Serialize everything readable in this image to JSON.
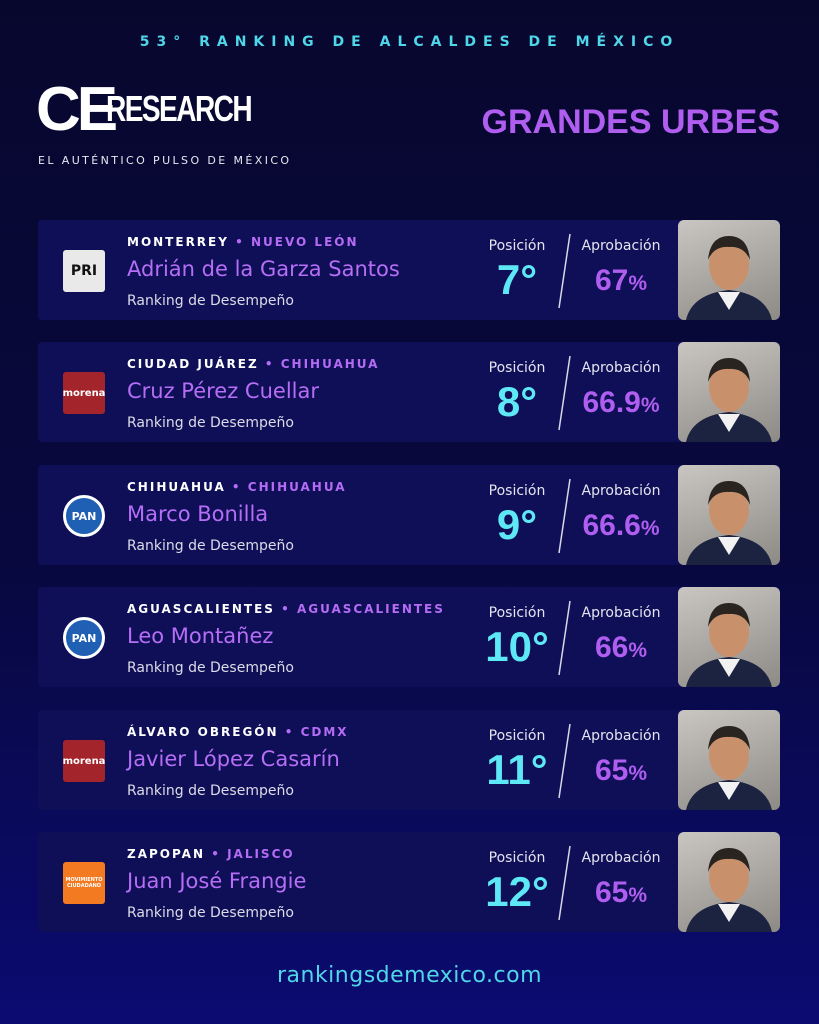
{
  "header": {
    "kicker": "53° RANKING DE ALCALDES DE MÉXICO",
    "logo_main": "CE",
    "logo_rest": "RESEARCH",
    "tagline": "EL AUTÉNTICO PULSO DE MÉXICO",
    "section_title": "GRANDES URBES"
  },
  "cards": [
    {
      "city": "MONTERREY",
      "state": "NUEVO LEÓN",
      "name": "Adrián de la Garza Santos",
      "subtitle": "Ranking de Desempeño",
      "position_label": "Posición",
      "position": "7°",
      "approval_label": "Aprobación",
      "approval": "67",
      "approval_unit": "%",
      "party": {
        "label": "PRI",
        "color": "#e9e9e9"
      }
    },
    {
      "city": "CIUDAD JUÁREZ",
      "state": "CHIHUAHUA",
      "name": "Cruz Pérez Cuellar",
      "subtitle": "Ranking de Desempeño",
      "position_label": "Posición",
      "position": "8°",
      "approval_label": "Aprobación",
      "approval": "66.9",
      "approval_unit": "%",
      "party": {
        "label": "morena",
        "color": "#a3242a"
      }
    },
    {
      "city": "CHIHUAHUA",
      "state": "CHIHUAHUA",
      "name": "Marco Bonilla",
      "subtitle": "Ranking de Desempeño",
      "position_label": "Posición",
      "position": "9°",
      "approval_label": "Aprobación",
      "approval": "66.6",
      "approval_unit": "%",
      "party": {
        "label": "PAN",
        "color": "#1f5fb4"
      }
    },
    {
      "city": "AGUASCALIENTES",
      "state": "AGUASCALIENTES",
      "name": "Leo Montañez",
      "subtitle": "Ranking de Desempeño",
      "position_label": "Posición",
      "position": "10°",
      "approval_label": "Aprobación",
      "approval": "66",
      "approval_unit": "%",
      "party": {
        "label": "PAN",
        "color": "#1f5fb4"
      }
    },
    {
      "city": "ÁLVARO OBREGÓN",
      "state": "CDMX",
      "name": "Javier López Casarín",
      "subtitle": "Ranking de Desempeño",
      "position_label": "Posición",
      "position": "11°",
      "approval_label": "Aprobación",
      "approval": "65",
      "approval_unit": "%",
      "party": {
        "label": "morena",
        "color": "#a3242a"
      }
    },
    {
      "city": "ZAPOPAN",
      "state": "JALISCO",
      "name": "Juan José Frangie",
      "subtitle": "Ranking de Desempeño",
      "position_label": "Posición",
      "position": "12°",
      "approval_label": "Aprobación",
      "approval": "65",
      "approval_unit": "%",
      "party": {
        "label": "MOVIMIENTO CIUDADANO",
        "color": "#f37a20"
      }
    }
  ],
  "footer": {
    "url": "rankingsdemexico.com"
  }
}
